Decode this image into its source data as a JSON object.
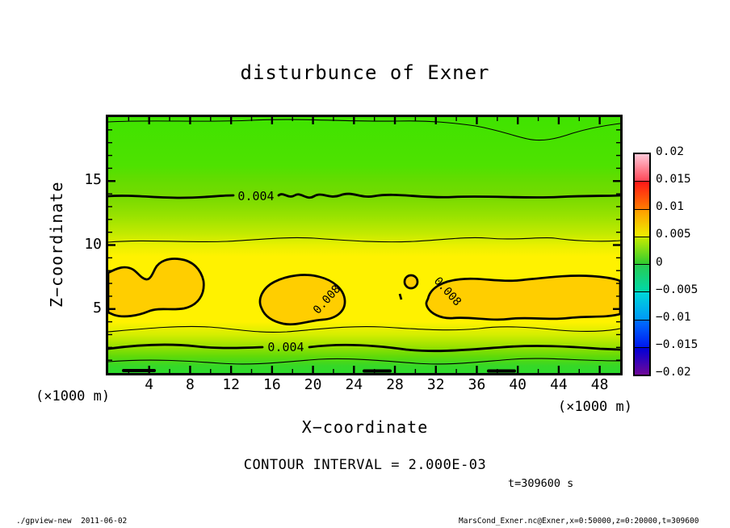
{
  "title": "disturbunce of Exner",
  "axes": {
    "x": {
      "title": "X−coordinate",
      "unit": "(×1000 m)",
      "range": [
        0,
        50
      ],
      "tick_values": [
        4,
        8,
        12,
        16,
        20,
        24,
        28,
        32,
        36,
        40,
        44,
        48
      ],
      "tick_labels": [
        "4",
        "8",
        "12",
        "16",
        "20",
        "24",
        "28",
        "32",
        "36",
        "40",
        "44",
        "48"
      ],
      "minor_step": 2,
      "major_step": 4
    },
    "z": {
      "title": "Z−coordinate",
      "unit": "(×1000 m)",
      "range": [
        0,
        20
      ],
      "tick_values": [
        5,
        10,
        15
      ],
      "tick_labels": [
        "5",
        "10",
        "15"
      ],
      "minor_step": 1,
      "major_step": 5
    }
  },
  "plot": {
    "contour_label_upper": "0.004",
    "contour_label_lower": "0.004",
    "contour_label_blob_mid": "0.008",
    "contour_label_blob_right": "0.008"
  },
  "colorbar": {
    "tick_labels": [
      "0.02",
      "0.015",
      "0.01",
      "0.005",
      "0",
      "−0.005",
      "−0.01",
      "−0.015",
      "−0.02"
    ],
    "segments": [
      {
        "top": "#ffc8d8",
        "bottom": "#ff4858"
      },
      {
        "top": "#ff1818",
        "bottom": "#ff7c00"
      },
      {
        "top": "#ff9c00",
        "bottom": "#eef000"
      },
      {
        "top": "#c6ec00",
        "bottom": "#30cc30"
      },
      {
        "top": "#28cc52",
        "bottom": "#00d8aa"
      },
      {
        "top": "#00d8d8",
        "bottom": "#0098f8"
      },
      {
        "top": "#0070ff",
        "bottom": "#0018f0"
      },
      {
        "top": "#0000d8",
        "bottom": "#700898"
      }
    ]
  },
  "captions": {
    "contour_interval": "CONTOUR INTERVAL = 2.000E-03",
    "time": "t=309600 s"
  },
  "footer": {
    "left": "./gpview-new  2011-06-02",
    "right": "MarsCond_Exner.nc@Exner,x=0:50000,z=0:20000,t=309600"
  },
  "chart_data": {
    "type": "heatmap",
    "subtype": "filled_contour",
    "title": "disturbunce of Exner",
    "xlabel": "X−coordinate (×1000 m)",
    "ylabel": "Z−coordinate (×1000 m)",
    "x_range": [
      0,
      50
    ],
    "z_range": [
      0,
      20
    ],
    "time_s": 309600,
    "contour_interval": 0.002,
    "colorbar_range": [
      -0.02,
      0.02
    ],
    "colorbar_tick_values": [
      0.02,
      0.015,
      0.01,
      0.005,
      0,
      -0.005,
      -0.01,
      -0.015,
      -0.02
    ],
    "visible_contour_levels": [
      0.002,
      0.004,
      0.006,
      0.008
    ],
    "field_description": "Horizontally banded positive Exner-function disturbance; value rises from ~0.001 at the surface to a maximum ~0.008-0.009 in a layer near z=5-7 km, then decreases to ~0.002-0.003 near z=20 km.",
    "vertical_profile": [
      {
        "z": 20,
        "value": 0.002
      },
      {
        "z": 17,
        "value": 0.003
      },
      {
        "z": 13.7,
        "value": 0.004
      },
      {
        "z": 10.5,
        "value": 0.005
      },
      {
        "z": 9.0,
        "value": 0.006
      },
      {
        "z": 6.0,
        "value": 0.008
      },
      {
        "z": 3.5,
        "value": 0.006
      },
      {
        "z": 2.2,
        "value": 0.004
      },
      {
        "z": 1.0,
        "value": 0.002
      },
      {
        "z": 0,
        "value": 0.001
      }
    ],
    "closed_008_regions": [
      {
        "x_span": [
          0,
          10
        ],
        "z_span": [
          4.5,
          8.2
        ],
        "note": "attached to left boundary"
      },
      {
        "x_span": [
          14.5,
          23.5
        ],
        "z_span": [
          4.0,
          7.5
        ]
      },
      {
        "x_span": [
          29.2,
          30.5
        ],
        "z_span": [
          6.6,
          7.4
        ],
        "note": "small closed cell"
      },
      {
        "x_span": [
          31.5,
          50
        ],
        "z_span": [
          4.2,
          7.8
        ],
        "note": "attached to right boundary"
      }
    ],
    "legend_position": "right colorbar",
    "grid": false
  }
}
